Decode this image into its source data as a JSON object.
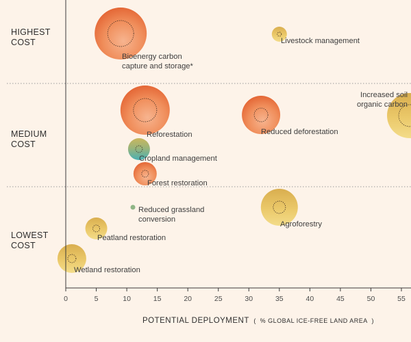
{
  "chart_data": {
    "type": "scatter",
    "title": "",
    "xlabel": "POTENTIAL DEPLOYMENT",
    "xlabel_unit": "% GLOBAL ICE-FREE LAND AREA",
    "ylabel": "",
    "xlim": [
      0,
      57
    ],
    "x_ticks": [
      "0",
      "5",
      "10",
      "15",
      "20",
      "25",
      "30",
      "35",
      "40",
      "45",
      "50",
      "55"
    ],
    "grid": false,
    "bands": [
      {
        "label": [
          "HIGHEST",
          "COST"
        ]
      },
      {
        "label": [
          "MEDIUM",
          "COST"
        ]
      },
      {
        "label": [
          "LOWEST",
          "COST"
        ]
      }
    ],
    "colors": {
      "orange_inner": "#f08e5b",
      "orange_outer": "#e5653a",
      "yellow_inner": "#ecd06f",
      "yellow_outer": "#e2ad45",
      "teal_bottom": "#51b5ae",
      "green": "#8fb585",
      "background": "#fdf3e9",
      "axis": "#3a3a3a"
    },
    "points": [
      {
        "label": [
          "Bioenergy carbon",
          "capture and storage*"
        ],
        "x": 9,
        "band": "HIGHEST COST",
        "color": "orange",
        "size": "large",
        "inner_size": "medium"
      },
      {
        "label": [
          "Livestock management"
        ],
        "x": 35,
        "band": "HIGHEST COST",
        "color": "yellow",
        "size": "small",
        "inner_size": "tiny"
      },
      {
        "label": [
          "Increased soil",
          "organic carbon"
        ],
        "x": 57,
        "band": "MEDIUM COST",
        "color": "yellow",
        "size": "large",
        "inner_size": "medium"
      },
      {
        "label": [
          "Reforestation"
        ],
        "x": 13,
        "band": "MEDIUM COST",
        "color": "orange",
        "size": "large",
        "inner_size": "medium"
      },
      {
        "label": [
          "Reduced deforestation"
        ],
        "x": 32,
        "band": "MEDIUM COST",
        "color": "orange",
        "size": "large",
        "inner_size": "small"
      },
      {
        "label": [
          "Cropland management"
        ],
        "x": 12,
        "band": "MEDIUM COST",
        "color": "teal",
        "size": "small",
        "inner_size": "tiny"
      },
      {
        "label": [
          "Forest restoration"
        ],
        "x": 13,
        "band": "MEDIUM COST",
        "color": "orange",
        "size": "small",
        "inner_size": "tiny"
      },
      {
        "label": [
          "Reduced grassland",
          "conversion"
        ],
        "x": 11,
        "band": "LOWEST COST",
        "color": "green",
        "size": "dot",
        "inner_size": "none"
      },
      {
        "label": [
          "Agroforestry"
        ],
        "x": 35,
        "band": "LOWEST COST",
        "color": "yellow",
        "size": "large",
        "inner_size": "small"
      },
      {
        "label": [
          "Peatland restoration"
        ],
        "x": 5,
        "band": "LOWEST COST",
        "color": "yellow",
        "size": "small",
        "inner_size": "tiny"
      },
      {
        "label": [
          "Wetland restoration"
        ],
        "x": 1,
        "band": "LOWEST COST",
        "color": "yellow",
        "size": "medium",
        "inner_size": "tiny"
      }
    ]
  }
}
